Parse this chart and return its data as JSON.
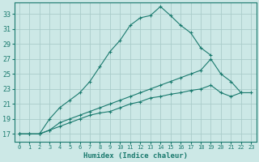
{
  "xlabel": "Humidex (Indice chaleur)",
  "xlim": [
    -0.5,
    23.5
  ],
  "ylim": [
    16.0,
    34.5
  ],
  "xticks": [
    0,
    1,
    2,
    3,
    4,
    5,
    6,
    7,
    8,
    9,
    10,
    11,
    12,
    13,
    14,
    15,
    16,
    17,
    18,
    19,
    20,
    21,
    22,
    23
  ],
  "yticks": [
    17,
    19,
    21,
    23,
    25,
    27,
    29,
    31,
    33
  ],
  "background_color": "#cce8e6",
  "grid_color": "#aaccca",
  "line_color": "#1a7a6e",
  "line1_x": [
    0,
    1,
    2,
    3,
    4,
    5,
    6,
    7,
    8,
    9,
    10,
    11,
    12,
    13,
    14,
    15,
    16,
    17,
    18,
    19
  ],
  "line1_y": [
    17.0,
    17.0,
    17.0,
    19.0,
    20.5,
    21.5,
    22.5,
    24.0,
    26.0,
    28.0,
    29.5,
    31.5,
    32.5,
    32.8,
    34.0,
    32.8,
    31.5,
    30.5,
    28.5,
    27.5
  ],
  "line2_x": [
    0,
    1,
    2,
    3,
    4,
    5,
    6,
    7,
    8,
    9,
    10,
    11,
    12,
    13,
    14,
    15,
    16,
    17,
    18,
    19,
    20,
    21,
    22
  ],
  "line2_y": [
    17.0,
    17.0,
    17.0,
    17.5,
    18.5,
    19.0,
    19.5,
    20.0,
    20.5,
    21.0,
    21.5,
    22.0,
    22.5,
    23.0,
    23.5,
    24.0,
    24.5,
    25.0,
    25.5,
    27.0,
    25.0,
    24.0,
    22.5
  ],
  "line3_x": [
    0,
    1,
    2,
    3,
    4,
    5,
    6,
    7,
    8,
    9,
    10,
    11,
    12,
    13,
    14,
    15,
    16,
    17,
    18,
    19,
    20,
    21,
    22,
    23
  ],
  "line3_y": [
    17.0,
    17.0,
    17.0,
    17.5,
    18.0,
    18.5,
    19.0,
    19.5,
    19.8,
    20.0,
    20.5,
    21.0,
    21.3,
    21.8,
    22.0,
    22.3,
    22.5,
    22.8,
    23.0,
    23.5,
    22.5,
    22.0,
    22.5,
    22.5
  ]
}
